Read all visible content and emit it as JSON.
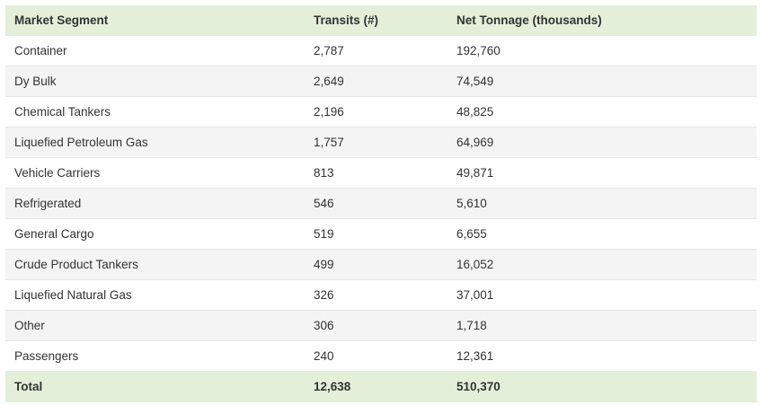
{
  "chart_data": {
    "type": "table",
    "columns": [
      "Market Segment",
      "Transits (#)",
      "Net Tonnage (thousands)"
    ],
    "rows": [
      [
        "Container",
        "2,787",
        "192,760"
      ],
      [
        "Dy Bulk",
        "2,649",
        "74,549"
      ],
      [
        "Chemical Tankers",
        "2,196",
        "48,825"
      ],
      [
        "Liquefied Petroleum Gas",
        "1,757",
        "64,969"
      ],
      [
        "Vehicle Carriers",
        "813",
        "49,871"
      ],
      [
        "Refrigerated",
        "546",
        "5,610"
      ],
      [
        "General Cargo",
        "519",
        "6,655"
      ],
      [
        "Crude Product Tankers",
        "499",
        "16,052"
      ],
      [
        "Liquefied Natural Gas",
        "326",
        "37,001"
      ],
      [
        "Other",
        "306",
        "1,718"
      ],
      [
        "Passengers",
        "240",
        "12,361"
      ]
    ],
    "total": [
      "Total",
      "12,638",
      "510,370"
    ]
  }
}
